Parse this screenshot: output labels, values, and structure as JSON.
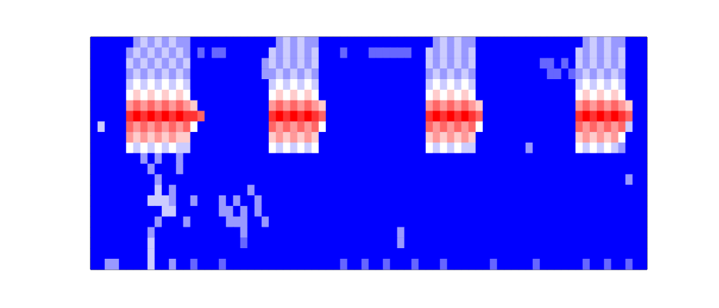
{
  "chart_data": {
    "type": "heatmap",
    "tick_labels": false,
    "color_range": [
      0,
      10
    ],
    "cells": [
      [
        0,
        0,
        0,
        0,
        0,
        0,
        3,
        4,
        3,
        4,
        3,
        4,
        3,
        3,
        0,
        0,
        0,
        0,
        0,
        0,
        0,
        0,
        0,
        0,
        0,
        0,
        3,
        4,
        3,
        4,
        3,
        3,
        0,
        0,
        0,
        0,
        0,
        0,
        0,
        0,
        0,
        0,
        0,
        0,
        0,
        0,
        0,
        0,
        3,
        4,
        3,
        4,
        3,
        3,
        0,
        0,
        0,
        0,
        0,
        0,
        0,
        0,
        0,
        0,
        0,
        0,
        0,
        0,
        0,
        3,
        4,
        3,
        4,
        3,
        3,
        0,
        0,
        0
      ],
      [
        0,
        0,
        0,
        0,
        0,
        3,
        4,
        3,
        4,
        3,
        4,
        3,
        4,
        3,
        0,
        2,
        0,
        2,
        2,
        0,
        0,
        0,
        0,
        0,
        0,
        4,
        3,
        4,
        3,
        4,
        3,
        4,
        0,
        0,
        0,
        2,
        0,
        0,
        0,
        2,
        2,
        2,
        2,
        2,
        2,
        0,
        0,
        4,
        3,
        4,
        3,
        4,
        3,
        4,
        0,
        0,
        0,
        0,
        0,
        0,
        0,
        0,
        0,
        0,
        0,
        0,
        0,
        0,
        4,
        3,
        4,
        3,
        4,
        3,
        4,
        0,
        0,
        0
      ],
      [
        0,
        0,
        0,
        0,
        0,
        4,
        3,
        4,
        3,
        4,
        3,
        4,
        3,
        4,
        0,
        0,
        0,
        0,
        0,
        0,
        0,
        0,
        0,
        0,
        3,
        4,
        3,
        4,
        3,
        4,
        3,
        4,
        0,
        0,
        0,
        0,
        0,
        0,
        0,
        0,
        0,
        0,
        0,
        0,
        0,
        0,
        0,
        4,
        3,
        4,
        3,
        4,
        3,
        4,
        0,
        0,
        0,
        0,
        0,
        0,
        0,
        0,
        0,
        2,
        2,
        0,
        2,
        0,
        4,
        3,
        4,
        3,
        4,
        3,
        4,
        0,
        0,
        0
      ],
      [
        0,
        0,
        0,
        0,
        0,
        3,
        4,
        3,
        4,
        3,
        4,
        3,
        4,
        3,
        0,
        0,
        0,
        0,
        0,
        0,
        0,
        0,
        0,
        0,
        3,
        3,
        4,
        3,
        4,
        3,
        4,
        3,
        0,
        0,
        0,
        0,
        0,
        0,
        0,
        0,
        0,
        0,
        0,
        0,
        0,
        0,
        0,
        3,
        4,
        3,
        4,
        3,
        4,
        3,
        0,
        0,
        0,
        0,
        0,
        0,
        0,
        0,
        0,
        0,
        2,
        2,
        0,
        2,
        3,
        4,
        3,
        4,
        3,
        4,
        3,
        0,
        0,
        0
      ],
      [
        0,
        0,
        0,
        0,
        0,
        4,
        5,
        4,
        5,
        4,
        5,
        4,
        5,
        4,
        0,
        0,
        0,
        0,
        0,
        0,
        0,
        0,
        0,
        0,
        0,
        4,
        5,
        4,
        5,
        4,
        5,
        4,
        0,
        0,
        0,
        0,
        0,
        0,
        0,
        0,
        0,
        0,
        0,
        0,
        0,
        0,
        0,
        4,
        5,
        4,
        5,
        4,
        5,
        4,
        0,
        0,
        0,
        0,
        0,
        0,
        0,
        0,
        0,
        0,
        0,
        0,
        0,
        0,
        4,
        5,
        4,
        5,
        4,
        5,
        4,
        0,
        0,
        0
      ],
      [
        0,
        0,
        0,
        0,
        0,
        5,
        6,
        5,
        6,
        5,
        6,
        5,
        6,
        5,
        0,
        0,
        0,
        0,
        0,
        0,
        0,
        0,
        0,
        0,
        0,
        5,
        6,
        5,
        6,
        5,
        6,
        5,
        0,
        0,
        0,
        0,
        0,
        0,
        0,
        0,
        0,
        0,
        0,
        0,
        0,
        0,
        0,
        5,
        6,
        5,
        6,
        5,
        6,
        5,
        0,
        0,
        0,
        0,
        0,
        0,
        0,
        0,
        0,
        0,
        0,
        0,
        0,
        0,
        5,
        6,
        5,
        6,
        5,
        6,
        5,
        0,
        0,
        0
      ],
      [
        0,
        0,
        0,
        0,
        0,
        7,
        8,
        7,
        8,
        7,
        8,
        7,
        8,
        7,
        6,
        0,
        0,
        0,
        0,
        0,
        0,
        0,
        0,
        0,
        0,
        7,
        8,
        7,
        8,
        7,
        8,
        7,
        6,
        0,
        0,
        0,
        0,
        0,
        0,
        0,
        0,
        0,
        0,
        0,
        0,
        0,
        0,
        7,
        8,
        7,
        8,
        7,
        8,
        7,
        6,
        0,
        0,
        0,
        0,
        0,
        0,
        0,
        0,
        0,
        0,
        0,
        0,
        0,
        7,
        8,
        7,
        8,
        7,
        8,
        7,
        6,
        0,
        0
      ],
      [
        0,
        0,
        0,
        0,
        0,
        9,
        10,
        9,
        10,
        9,
        10,
        9,
        10,
        9,
        9,
        8,
        0,
        0,
        0,
        0,
        0,
        0,
        0,
        0,
        0,
        9,
        10,
        9,
        10,
        9,
        10,
        9,
        8,
        0,
        0,
        0,
        0,
        0,
        0,
        0,
        0,
        0,
        0,
        0,
        0,
        0,
        0,
        9,
        10,
        9,
        10,
        9,
        10,
        9,
        8,
        0,
        0,
        0,
        0,
        0,
        0,
        0,
        0,
        0,
        0,
        0,
        0,
        0,
        9,
        10,
        9,
        10,
        9,
        10,
        9,
        8,
        0,
        0
      ],
      [
        0,
        4,
        0,
        0,
        0,
        8,
        7,
        8,
        7,
        8,
        7,
        8,
        7,
        8,
        5,
        0,
        0,
        0,
        0,
        0,
        0,
        0,
        0,
        0,
        0,
        8,
        7,
        8,
        7,
        8,
        7,
        8,
        5,
        0,
        0,
        0,
        0,
        0,
        0,
        0,
        0,
        0,
        0,
        0,
        0,
        0,
        0,
        8,
        7,
        8,
        7,
        8,
        7,
        8,
        5,
        0,
        0,
        0,
        0,
        0,
        0,
        0,
        0,
        0,
        0,
        0,
        0,
        0,
        8,
        7,
        8,
        7,
        8,
        7,
        8,
        4,
        0,
        0
      ],
      [
        0,
        0,
        0,
        0,
        0,
        7,
        6,
        7,
        6,
        7,
        6,
        7,
        6,
        6,
        0,
        0,
        0,
        0,
        0,
        0,
        0,
        0,
        0,
        0,
        0,
        6,
        7,
        6,
        7,
        6,
        7,
        6,
        0,
        0,
        0,
        0,
        0,
        0,
        0,
        0,
        0,
        0,
        0,
        0,
        0,
        0,
        0,
        6,
        7,
        6,
        7,
        6,
        7,
        6,
        0,
        0,
        0,
        0,
        0,
        0,
        0,
        0,
        0,
        0,
        0,
        0,
        0,
        0,
        6,
        7,
        6,
        7,
        6,
        7,
        5,
        0,
        0,
        0
      ],
      [
        0,
        0,
        0,
        0,
        0,
        5,
        4,
        5,
        4,
        5,
        4,
        5,
        4,
        4,
        0,
        0,
        0,
        0,
        0,
        0,
        0,
        0,
        0,
        0,
        0,
        5,
        4,
        5,
        4,
        5,
        4,
        5,
        0,
        0,
        0,
        0,
        0,
        0,
        0,
        0,
        0,
        0,
        0,
        0,
        0,
        0,
        0,
        5,
        4,
        5,
        4,
        5,
        4,
        4,
        0,
        0,
        0,
        0,
        0,
        0,
        0,
        3,
        0,
        0,
        0,
        0,
        0,
        0,
        5,
        4,
        5,
        4,
        5,
        4,
        3,
        0,
        0,
        0
      ],
      [
        0,
        0,
        0,
        0,
        0,
        0,
        0,
        3,
        0,
        3,
        0,
        0,
        3,
        0,
        0,
        0,
        0,
        0,
        0,
        0,
        0,
        0,
        0,
        0,
        0,
        0,
        0,
        0,
        0,
        0,
        0,
        0,
        0,
        0,
        0,
        0,
        0,
        0,
        0,
        0,
        0,
        0,
        0,
        0,
        0,
        0,
        0,
        0,
        0,
        0,
        0,
        0,
        0,
        0,
        0,
        0,
        0,
        0,
        0,
        0,
        0,
        0,
        0,
        0,
        0,
        0,
        0,
        0,
        0,
        0,
        0,
        0,
        0,
        0,
        0,
        0,
        0,
        0
      ],
      [
        0,
        0,
        0,
        0,
        0,
        0,
        0,
        0,
        3,
        0,
        0,
        0,
        3,
        0,
        0,
        0,
        0,
        0,
        0,
        0,
        0,
        0,
        0,
        0,
        0,
        0,
        0,
        0,
        0,
        0,
        0,
        0,
        0,
        0,
        0,
        0,
        0,
        0,
        0,
        0,
        0,
        0,
        0,
        0,
        0,
        0,
        0,
        0,
        0,
        0,
        0,
        0,
        0,
        0,
        0,
        0,
        0,
        0,
        0,
        0,
        0,
        0,
        0,
        0,
        0,
        0,
        0,
        0,
        0,
        0,
        0,
        0,
        0,
        0,
        0,
        0,
        0,
        0
      ],
      [
        0,
        0,
        0,
        0,
        0,
        0,
        0,
        0,
        0,
        3,
        0,
        0,
        0,
        0,
        0,
        0,
        0,
        0,
        0,
        0,
        0,
        0,
        0,
        0,
        0,
        0,
        0,
        0,
        0,
        0,
        0,
        0,
        0,
        0,
        0,
        0,
        0,
        0,
        0,
        0,
        0,
        0,
        0,
        0,
        0,
        0,
        0,
        0,
        0,
        0,
        0,
        0,
        0,
        0,
        0,
        0,
        0,
        0,
        0,
        0,
        0,
        0,
        0,
        0,
        0,
        0,
        0,
        0,
        0,
        0,
        0,
        0,
        0,
        0,
        0,
        3,
        0,
        0
      ],
      [
        0,
        0,
        0,
        0,
        0,
        0,
        0,
        0,
        0,
        4,
        0,
        3,
        0,
        0,
        0,
        0,
        0,
        0,
        0,
        0,
        0,
        0,
        3,
        0,
        0,
        0,
        0,
        0,
        0,
        0,
        0,
        0,
        0,
        0,
        0,
        0,
        0,
        0,
        0,
        0,
        0,
        0,
        0,
        0,
        0,
        0,
        0,
        0,
        0,
        0,
        0,
        0,
        0,
        0,
        0,
        0,
        0,
        0,
        0,
        0,
        0,
        0,
        0,
        0,
        0,
        0,
        0,
        0,
        0,
        0,
        0,
        0,
        0,
        0,
        0,
        0,
        0,
        0
      ],
      [
        0,
        0,
        0,
        0,
        0,
        0,
        0,
        0,
        4,
        4,
        4,
        3,
        0,
        0,
        3,
        0,
        0,
        0,
        3,
        0,
        3,
        0,
        0,
        3,
        0,
        0,
        0,
        0,
        0,
        0,
        0,
        0,
        0,
        0,
        0,
        0,
        0,
        0,
        0,
        0,
        0,
        0,
        0,
        0,
        0,
        0,
        0,
        0,
        0,
        0,
        0,
        0,
        0,
        0,
        0,
        0,
        0,
        0,
        0,
        0,
        0,
        0,
        0,
        0,
        0,
        0,
        0,
        0,
        0,
        0,
        0,
        0,
        0,
        0,
        0,
        0,
        0,
        0
      ],
      [
        0,
        0,
        0,
        0,
        0,
        0,
        0,
        0,
        0,
        0,
        4,
        4,
        0,
        0,
        0,
        0,
        0,
        0,
        3,
        3,
        0,
        3,
        0,
        3,
        0,
        0,
        0,
        0,
        0,
        0,
        0,
        0,
        0,
        0,
        0,
        0,
        0,
        0,
        0,
        0,
        0,
        0,
        0,
        0,
        0,
        0,
        0,
        0,
        0,
        0,
        0,
        0,
        0,
        0,
        0,
        0,
        0,
        0,
        0,
        0,
        0,
        0,
        0,
        0,
        0,
        0,
        0,
        0,
        0,
        0,
        0,
        0,
        0,
        0,
        0,
        0,
        0,
        0
      ],
      [
        0,
        0,
        0,
        0,
        0,
        0,
        0,
        0,
        0,
        3,
        0,
        0,
        0,
        3,
        0,
        0,
        0,
        0,
        0,
        3,
        3,
        3,
        0,
        0,
        3,
        0,
        0,
        0,
        0,
        0,
        0,
        0,
        0,
        0,
        0,
        0,
        0,
        0,
        0,
        0,
        0,
        0,
        0,
        0,
        0,
        0,
        0,
        0,
        0,
        0,
        0,
        0,
        0,
        0,
        0,
        0,
        0,
        0,
        0,
        0,
        0,
        0,
        0,
        0,
        0,
        0,
        0,
        0,
        0,
        0,
        0,
        0,
        0,
        0,
        0,
        0,
        0,
        0
      ],
      [
        0,
        0,
        0,
        0,
        0,
        0,
        0,
        0,
        3,
        0,
        0,
        0,
        0,
        0,
        0,
        0,
        0,
        0,
        0,
        0,
        0,
        3,
        0,
        0,
        0,
        0,
        0,
        0,
        0,
        0,
        0,
        0,
        0,
        0,
        0,
        0,
        0,
        0,
        0,
        0,
        0,
        0,
        0,
        3,
        0,
        0,
        0,
        0,
        0,
        0,
        0,
        0,
        0,
        0,
        0,
        0,
        0,
        0,
        0,
        0,
        0,
        0,
        0,
        0,
        0,
        0,
        0,
        0,
        0,
        0,
        0,
        0,
        0,
        0,
        0,
        0,
        0,
        0
      ],
      [
        0,
        0,
        0,
        0,
        0,
        0,
        0,
        0,
        4,
        0,
        0,
        0,
        0,
        0,
        0,
        0,
        0,
        0,
        0,
        0,
        0,
        2,
        0,
        0,
        0,
        0,
        0,
        0,
        0,
        0,
        0,
        0,
        0,
        0,
        0,
        0,
        0,
        0,
        0,
        0,
        0,
        0,
        0,
        3,
        0,
        0,
        0,
        0,
        0,
        0,
        0,
        0,
        0,
        0,
        0,
        0,
        0,
        0,
        0,
        0,
        0,
        0,
        0,
        0,
        0,
        0,
        0,
        0,
        0,
        0,
        0,
        0,
        0,
        0,
        0,
        0,
        0,
        0
      ],
      [
        0,
        0,
        0,
        0,
        0,
        0,
        0,
        0,
        4,
        0,
        0,
        0,
        0,
        0,
        0,
        0,
        0,
        0,
        0,
        0,
        0,
        0,
        0,
        0,
        0,
        0,
        0,
        0,
        0,
        0,
        0,
        0,
        0,
        0,
        0,
        0,
        0,
        0,
        0,
        0,
        0,
        0,
        0,
        0,
        0,
        0,
        0,
        0,
        0,
        0,
        0,
        0,
        0,
        0,
        0,
        0,
        0,
        0,
        0,
        0,
        0,
        0,
        0,
        0,
        0,
        0,
        0,
        0,
        0,
        0,
        0,
        0,
        0,
        0,
        0,
        0,
        0,
        0
      ],
      [
        0,
        0,
        3,
        3,
        0,
        0,
        0,
        0,
        4,
        0,
        0,
        3,
        0,
        0,
        2,
        0,
        0,
        0,
        2,
        0,
        0,
        0,
        0,
        0,
        0,
        0,
        0,
        0,
        0,
        0,
        0,
        0,
        0,
        0,
        0,
        2,
        0,
        0,
        2,
        0,
        0,
        2,
        0,
        0,
        0,
        2,
        0,
        0,
        0,
        2,
        0,
        0,
        0,
        0,
        0,
        0,
        2,
        0,
        0,
        0,
        0,
        0,
        2,
        0,
        0,
        0,
        0,
        0,
        0,
        2,
        0,
        0,
        2,
        0,
        0,
        2,
        0,
        0
      ]
    ]
  }
}
